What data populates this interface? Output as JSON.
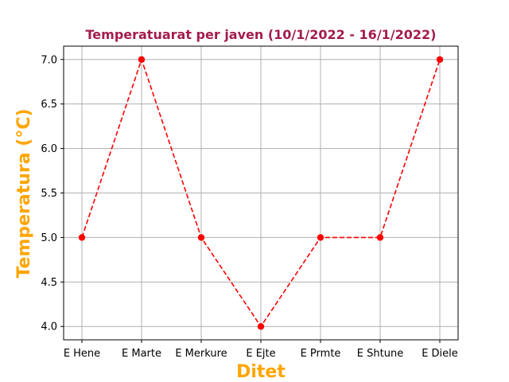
{
  "chart_data": {
    "type": "line",
    "title": "Temperatuarat per javen (10/1/2022 - 16/1/2022)",
    "xlabel": "Ditet",
    "ylabel": "Temperatura (°C)",
    "categories": [
      "E Hene",
      "E Marte",
      "E Merkure",
      "E Ejte",
      "E Prmte",
      "E Shtune",
      "E Diele"
    ],
    "series": [
      {
        "values": [
          5.0,
          7.0,
          5.0,
          4.0,
          5.0,
          5.0,
          7.0
        ],
        "color": "#ff0000",
        "line_style": "dashed",
        "marker": "circle"
      }
    ],
    "ylim": [
      3.85,
      7.15
    ],
    "yticks": [
      "4.0",
      "4.5",
      "5.0",
      "5.5",
      "6.0",
      "6.5",
      "7.0"
    ],
    "grid": true,
    "colors": {
      "title": "#a31c4f",
      "axis_labels": "#ffa500",
      "grid": "#b0b0b0"
    }
  }
}
